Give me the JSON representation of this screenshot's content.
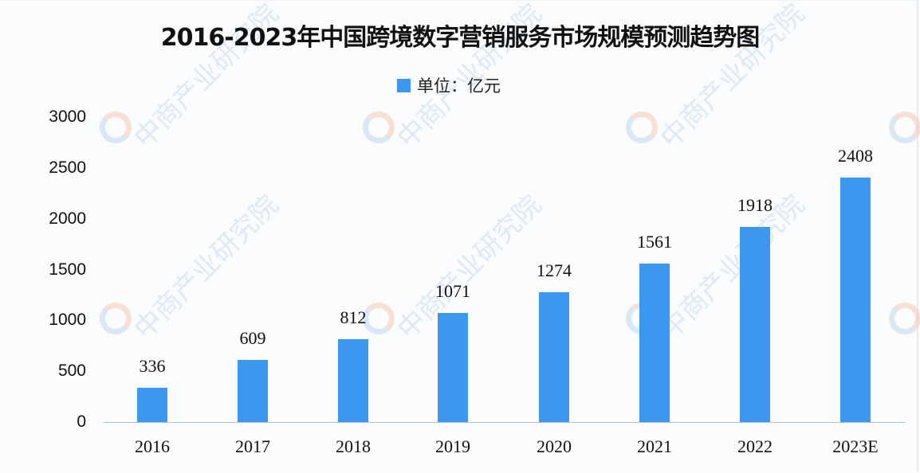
{
  "title": "2016-2023年中国跨境数字营销服务市场规模预测趋势图",
  "legend": {
    "label": "单位：亿元",
    "color": "#3b97ef"
  },
  "watermark": {
    "text": "中商产业研究院",
    "icon": "zhongshang-logo-icon"
  },
  "y_axis": {
    "ticks": [
      "3000",
      "2500",
      "2000",
      "1500",
      "1000",
      "500",
      "0"
    ]
  },
  "x_axis": {
    "ticks": [
      "2016",
      "2017",
      "2018",
      "2019",
      "2020",
      "2021",
      "2022",
      "2023E"
    ]
  },
  "bars": [
    {
      "label": "336"
    },
    {
      "label": "609"
    },
    {
      "label": "812"
    },
    {
      "label": "1071"
    },
    {
      "label": "1274"
    },
    {
      "label": "1561"
    },
    {
      "label": "1918"
    },
    {
      "label": "2408"
    }
  ],
  "chart_data": {
    "type": "bar",
    "title": "2016-2023年中国跨境数字营销服务市场规模预测趋势图",
    "categories": [
      "2016",
      "2017",
      "2018",
      "2019",
      "2020",
      "2021",
      "2022",
      "2023E"
    ],
    "series": [
      {
        "name": "单位：亿元",
        "values": [
          336,
          609,
          812,
          1071,
          1274,
          1561,
          1918,
          2408
        ],
        "color": "#3b97ef"
      }
    ],
    "xlabel": "",
    "ylabel": "亿元",
    "ylim": [
      0,
      3000
    ],
    "yticks": [
      0,
      500,
      1000,
      1500,
      2000,
      2500,
      3000
    ],
    "grid": false,
    "legend_position": "top-center",
    "data_labels": true
  }
}
